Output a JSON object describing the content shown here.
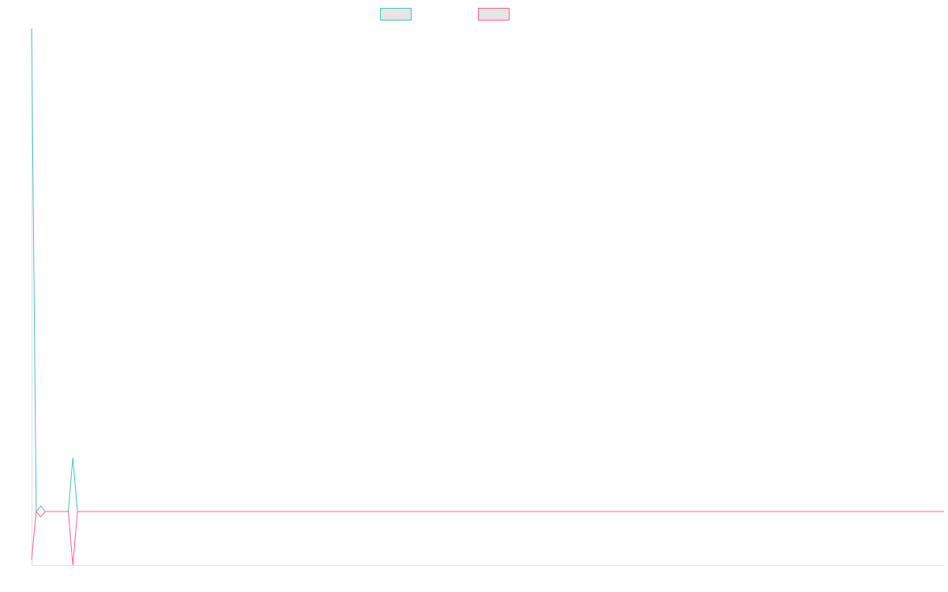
{
  "chart_data": {
    "type": "line",
    "title": "",
    "xlabel": "",
    "ylabel": "",
    "ylim": [
      0,
      100
    ],
    "grid": false,
    "legend": "top-center",
    "series": [
      {
        "color": "#4bc0c0",
        "fill": "#e5e5e5",
        "values": [
          100,
          10,
          11,
          10,
          10,
          10,
          10,
          10,
          10,
          20,
          10,
          10,
          10,
          10,
          10,
          10,
          10,
          10,
          10,
          10,
          10,
          10,
          10,
          10,
          10,
          10,
          10,
          10,
          10,
          10,
          10,
          10,
          10,
          10,
          10,
          10,
          10,
          10,
          10,
          10,
          10,
          10,
          10,
          10,
          10,
          10,
          10,
          10,
          10,
          10,
          10,
          10,
          10,
          10,
          10,
          10,
          10,
          10,
          10,
          10,
          10,
          10,
          10,
          10,
          10,
          10,
          10,
          10,
          10,
          10,
          10,
          10,
          10,
          10,
          10,
          10,
          10,
          10,
          10,
          10,
          10,
          10,
          10,
          10,
          10,
          10,
          10,
          10,
          10,
          10,
          10,
          10,
          10,
          10,
          10,
          10,
          10,
          10,
          10,
          10,
          10,
          10,
          10,
          10,
          10,
          10,
          10,
          10,
          10,
          10,
          10,
          10,
          10,
          10,
          10,
          10,
          10,
          10,
          10,
          10,
          10,
          10,
          10,
          10,
          10,
          10,
          10,
          10,
          10,
          10,
          10,
          10,
          10,
          10,
          10,
          10,
          10,
          10,
          10,
          10,
          10,
          10,
          10,
          10,
          10,
          10,
          10,
          10,
          10,
          10,
          10,
          10,
          10,
          10,
          10,
          10,
          10,
          10,
          10,
          10,
          10,
          10,
          10,
          10,
          10,
          10,
          10,
          10,
          10,
          10,
          10,
          10,
          10,
          10,
          10,
          10,
          10,
          10,
          10,
          10,
          10,
          10,
          10,
          10,
          10,
          10,
          10,
          10,
          10,
          10,
          10,
          10,
          10,
          10,
          10,
          10,
          10,
          10,
          10,
          10
        ]
      },
      {
        "color": "#ff6384",
        "fill": "#e5e5e5",
        "values": [
          1,
          10,
          9,
          10,
          10,
          10,
          10,
          10,
          10,
          0,
          10,
          10,
          10,
          10,
          10,
          10,
          10,
          10,
          10,
          10,
          10,
          10,
          10,
          10,
          10,
          10,
          10,
          10,
          10,
          10,
          10,
          10,
          10,
          10,
          10,
          10,
          10,
          10,
          10,
          10,
          10,
          10,
          10,
          10,
          10,
          10,
          10,
          10,
          10,
          10,
          10,
          10,
          10,
          10,
          10,
          10,
          10,
          10,
          10,
          10,
          10,
          10,
          10,
          10,
          10,
          10,
          10,
          10,
          10,
          10,
          10,
          10,
          10,
          10,
          10,
          10,
          10,
          10,
          10,
          10,
          10,
          10,
          10,
          10,
          10,
          10,
          10,
          10,
          10,
          10,
          10,
          10,
          10,
          10,
          10,
          10,
          10,
          10,
          10,
          10,
          10,
          10,
          10,
          10,
          10,
          10,
          10,
          10,
          10,
          10,
          10,
          10,
          10,
          10,
          10,
          10,
          10,
          10,
          10,
          10,
          10,
          10,
          10,
          10,
          10,
          10,
          10,
          10,
          10,
          10,
          10,
          10,
          10,
          10,
          10,
          10,
          10,
          10,
          10,
          10,
          10,
          10,
          10,
          10,
          10,
          10,
          10,
          10,
          10,
          10,
          10,
          10,
          10,
          10,
          10,
          10,
          10,
          10,
          10,
          10,
          10,
          10,
          10,
          10,
          10,
          10,
          10,
          10,
          10,
          10,
          10,
          10,
          10,
          10,
          10,
          10,
          10,
          10,
          10,
          10,
          10,
          10,
          10,
          10,
          10,
          10,
          10,
          10,
          10,
          10,
          10,
          10,
          10,
          10,
          10,
          10,
          10,
          10,
          10,
          10
        ]
      }
    ]
  }
}
